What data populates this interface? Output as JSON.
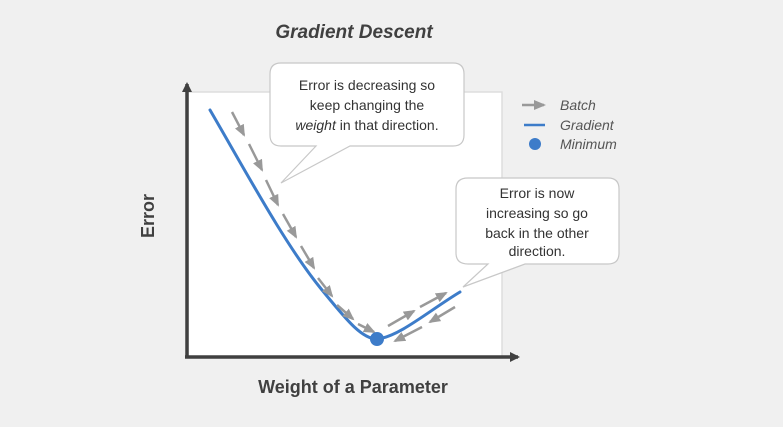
{
  "title": "Gradient Descent",
  "axes": {
    "x_label": "Weight of a Parameter",
    "y_label": "Error"
  },
  "callouts": {
    "decreasing": {
      "line1": "Error is decreasing so",
      "line2": "keep changing the",
      "line3_italic": "weight",
      "line3_rest": " in that direction."
    },
    "increasing": {
      "line1": "Error is now",
      "line2": "increasing so go",
      "line3": "back in the other",
      "line4": "direction."
    }
  },
  "legend": {
    "batch": "Batch",
    "gradient": "Gradient",
    "minimum": "Minimum"
  },
  "colors": {
    "background": "#f0f0f0",
    "plot_area": "#ffffff",
    "axis": "#404040",
    "gradient_curve": "#3d7cc9",
    "batch_arrows": "#999999",
    "minimum_point": "#3d7cc9",
    "callout_border": "#c8c8c8"
  }
}
